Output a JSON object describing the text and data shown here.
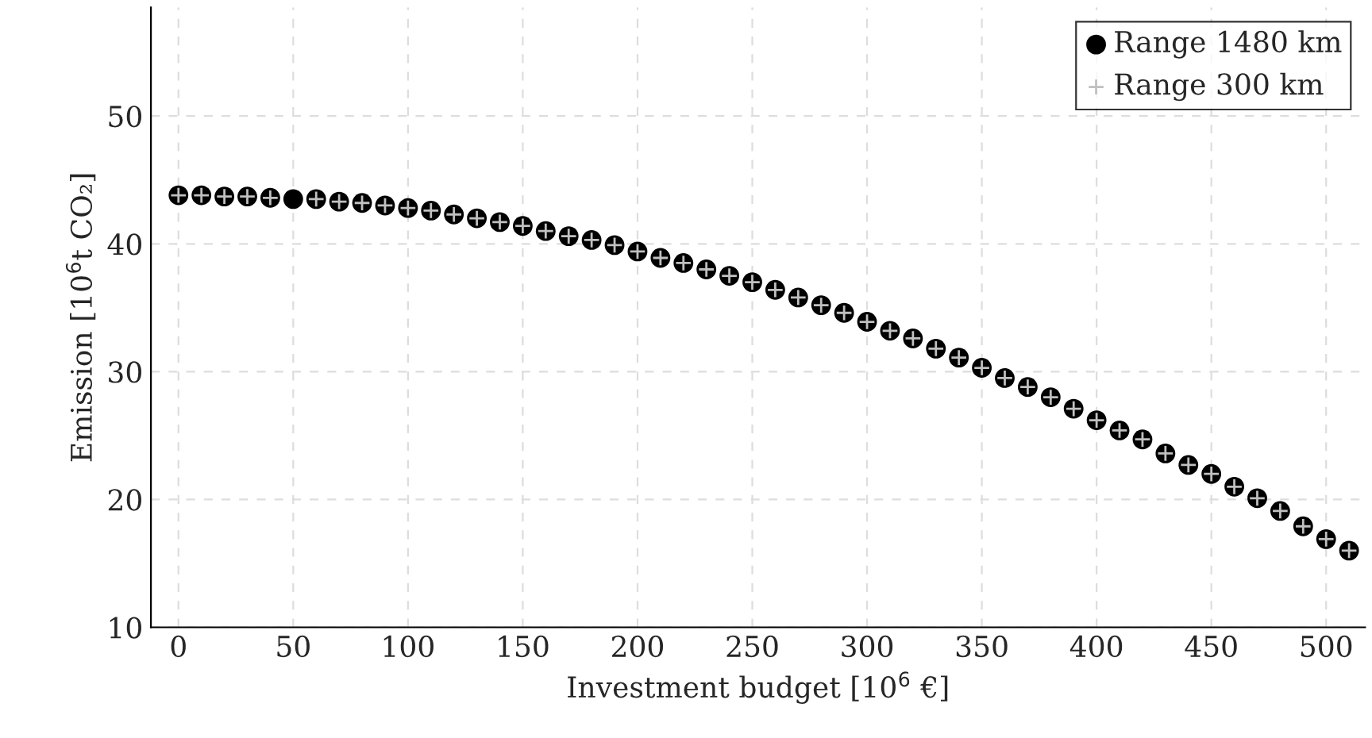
{
  "chart_data": {
    "type": "scatter",
    "xlabel": "Investment budget [10$^{6}$ €]",
    "ylabel": "Emission [10$^{6}$t CO₂]",
    "x": [
      0,
      10,
      20,
      30,
      40,
      50,
      60,
      70,
      80,
      90,
      100,
      110,
      120,
      130,
      140,
      150,
      160,
      170,
      180,
      190,
      200,
      210,
      220,
      230,
      240,
      250,
      260,
      270,
      280,
      290,
      300,
      310,
      320,
      330,
      340,
      350,
      360,
      370,
      380,
      390,
      400,
      410,
      420,
      430,
      440,
      450,
      460,
      470,
      480,
      490,
      500,
      510
    ],
    "series": [
      {
        "name": "Range 1480 km",
        "color": "#000000",
        "marker": "circle",
        "values": [
          43.8,
          43.8,
          43.7,
          43.7,
          43.6,
          43.5,
          43.5,
          43.3,
          43.2,
          43.0,
          42.8,
          42.6,
          42.3,
          42.0,
          41.7,
          41.4,
          41.0,
          40.6,
          40.3,
          39.9,
          39.4,
          38.9,
          38.5,
          38.0,
          37.5,
          37.0,
          36.4,
          35.8,
          35.2,
          34.6,
          33.9,
          33.2,
          32.6,
          31.8,
          31.1,
          30.3,
          29.5,
          28.8,
          28.0,
          27.1,
          26.2,
          25.4,
          24.7,
          23.6,
          22.7,
          22.0,
          21.0,
          20.1,
          19.1,
          17.9,
          16.9,
          16.0
        ]
      },
      {
        "name": "Range 300 km",
        "color": "#c0c0c0",
        "marker": "cross",
        "values": [
          43.8,
          43.8,
          43.7,
          43.7,
          43.6,
          null,
          43.5,
          43.3,
          43.2,
          43.0,
          42.8,
          42.6,
          42.3,
          42.0,
          41.7,
          41.4,
          41.0,
          40.6,
          40.3,
          39.9,
          39.4,
          38.9,
          38.5,
          38.0,
          37.5,
          37.0,
          36.4,
          35.8,
          35.2,
          34.6,
          33.9,
          33.2,
          32.6,
          31.8,
          31.1,
          30.3,
          29.5,
          28.8,
          28.0,
          27.1,
          26.2,
          25.4,
          24.7,
          23.6,
          22.7,
          22.0,
          21.0,
          20.1,
          19.1,
          17.9,
          16.9,
          16.0
        ]
      }
    ],
    "xlim": [
      -12,
      517
    ],
    "ylim": [
      10,
      58.5
    ],
    "xticks": [
      0,
      50,
      100,
      150,
      200,
      250,
      300,
      350,
      400,
      450,
      500
    ],
    "yticks": [
      10,
      20,
      30,
      40,
      50
    ],
    "grid": true,
    "legend": "top right"
  }
}
